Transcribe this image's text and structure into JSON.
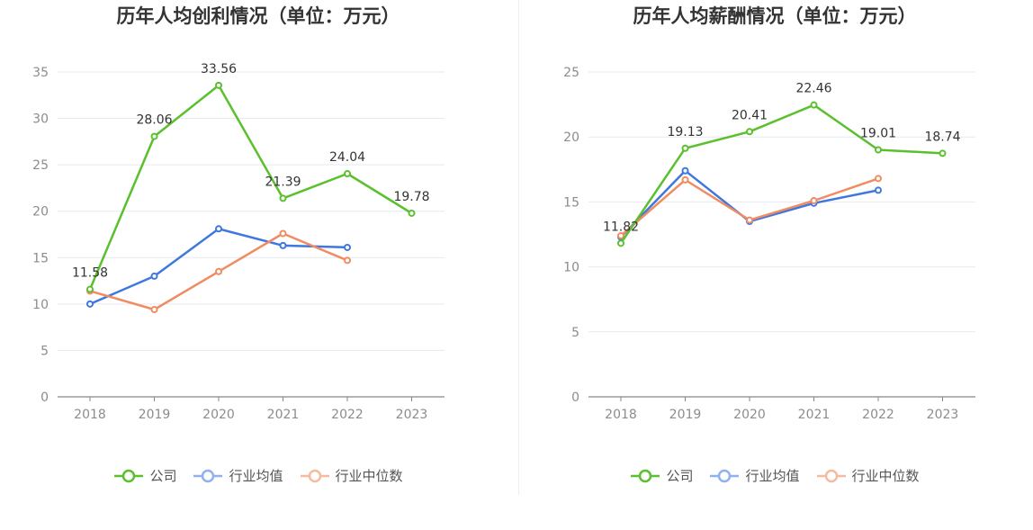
{
  "colors": {
    "company": "#5ac02e",
    "industry_avg": "#3f77e0",
    "industry_median": "#f08c61",
    "grid": "#e6e9f2",
    "axis": "#888888"
  },
  "legend": {
    "company": "公司",
    "industry_avg": "行业均值",
    "industry_median": "行业中位数"
  },
  "chart_data": [
    {
      "type": "line",
      "title": "历年人均创利情况（单位：万元）",
      "categories": [
        "2018",
        "2019",
        "2020",
        "2021",
        "2022",
        "2023"
      ],
      "ylim": [
        0,
        35
      ],
      "yticks": [
        0,
        5,
        10,
        15,
        20,
        25,
        30,
        35
      ],
      "grid": true,
      "legend_position": "bottom",
      "series": [
        {
          "name": "公司",
          "key": "company",
          "values": [
            11.58,
            28.06,
            33.56,
            21.39,
            24.04,
            19.78
          ],
          "labels": [
            "11.58",
            "28.06",
            "33.56",
            "21.39",
            "24.04",
            "19.78"
          ]
        },
        {
          "name": "行业均值",
          "key": "industry_avg",
          "values": [
            10.0,
            13.0,
            18.1,
            16.3,
            16.1,
            null
          ]
        },
        {
          "name": "行业中位数",
          "key": "industry_median",
          "values": [
            11.4,
            9.4,
            13.5,
            17.6,
            14.7,
            null
          ]
        }
      ]
    },
    {
      "type": "line",
      "title": "历年人均薪酬情况（单位：万元）",
      "categories": [
        "2018",
        "2019",
        "2020",
        "2021",
        "2022",
        "2023"
      ],
      "ylim": [
        0,
        25
      ],
      "yticks": [
        0,
        5,
        10,
        15,
        20,
        25
      ],
      "grid": true,
      "legend_position": "bottom",
      "series": [
        {
          "name": "公司",
          "key": "company",
          "values": [
            11.82,
            19.13,
            20.41,
            22.46,
            19.01,
            18.74
          ],
          "labels": [
            "11.82",
            "19.13",
            "20.41",
            "22.46",
            "19.01",
            "18.74"
          ]
        },
        {
          "name": "行业均值",
          "key": "industry_avg",
          "values": [
            12.3,
            17.4,
            13.5,
            14.9,
            15.9,
            null
          ]
        },
        {
          "name": "行业中位数",
          "key": "industry_median",
          "values": [
            12.4,
            16.7,
            13.6,
            15.1,
            16.8,
            null
          ]
        }
      ]
    }
  ]
}
